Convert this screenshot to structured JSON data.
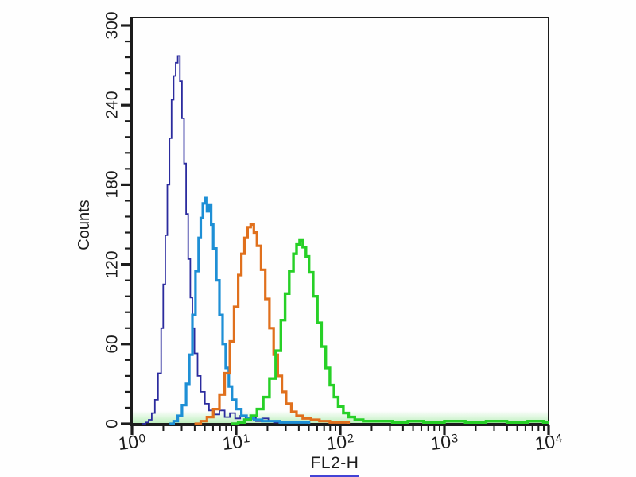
{
  "chart_data": {
    "type": "line",
    "subtype": "flow-cytometry-step-histogram",
    "title": "",
    "xlabel": "FL2-H",
    "ylabel": "Counts",
    "x_scale": "log10",
    "xlim_log_decades": [
      0,
      4
    ],
    "ylim": [
      0,
      300
    ],
    "grid": false,
    "legend": "none",
    "background_color": "#fefefe",
    "axis_color": "#1c1c1c",
    "xlabel_underline_color": "#4343d6",
    "x_ticks": [
      {
        "base": "10",
        "exp": "0",
        "log_value": 0
      },
      {
        "base": "10",
        "exp": "1",
        "log_value": 1
      },
      {
        "base": "10",
        "exp": "2",
        "log_value": 2
      },
      {
        "base": "10",
        "exp": "3",
        "log_value": 3
      },
      {
        "base": "10",
        "exp": "4",
        "log_value": 4
      }
    ],
    "y_ticks": [
      {
        "label": "300",
        "value": 300
      },
      {
        "label": "240",
        "value": 240
      },
      {
        "label": "180",
        "value": 180
      },
      {
        "label": "120",
        "value": 120
      },
      {
        "label": "60",
        "value": 60
      },
      {
        "label": "0",
        "value": 0
      }
    ],
    "y_minor_step": 12,
    "series": [
      {
        "name": "dark-blue-histogram",
        "color": "#2b2b9e",
        "line_width": 1.8,
        "peak_x_value": 2.7,
        "peak_count": 277,
        "points_logx_count": [
          [
            0.1,
            0
          ],
          [
            0.13,
            1
          ],
          [
            0.16,
            3
          ],
          [
            0.19,
            8
          ],
          [
            0.22,
            18
          ],
          [
            0.25,
            38
          ],
          [
            0.28,
            72
          ],
          [
            0.3,
            105
          ],
          [
            0.32,
            142
          ],
          [
            0.34,
            180
          ],
          [
            0.36,
            215
          ],
          [
            0.38,
            244
          ],
          [
            0.4,
            262
          ],
          [
            0.42,
            272
          ],
          [
            0.44,
            277
          ],
          [
            0.46,
            258
          ],
          [
            0.48,
            230
          ],
          [
            0.5,
            196
          ],
          [
            0.52,
            158
          ],
          [
            0.54,
            124
          ],
          [
            0.56,
            95
          ],
          [
            0.58,
            72
          ],
          [
            0.6,
            53
          ],
          [
            0.63,
            36
          ],
          [
            0.66,
            24
          ],
          [
            0.7,
            15
          ],
          [
            0.74,
            10
          ],
          [
            0.79,
            7
          ],
          [
            0.84,
            10
          ],
          [
            0.89,
            5
          ],
          [
            0.94,
            8
          ],
          [
            0.99,
            4
          ],
          [
            1.04,
            6
          ],
          [
            1.09,
            3
          ],
          [
            1.14,
            5
          ],
          [
            1.19,
            2
          ],
          [
            1.25,
            4
          ],
          [
            1.31,
            2
          ],
          [
            1.37,
            1
          ],
          [
            1.43,
            0
          ]
        ]
      },
      {
        "name": "light-blue-histogram",
        "color": "#1e8fd5",
        "line_width": 3.2,
        "peak_x_value": 5,
        "peak_count": 170,
        "points_logx_count": [
          [
            0.36,
            0
          ],
          [
            0.4,
            2
          ],
          [
            0.44,
            6
          ],
          [
            0.48,
            14
          ],
          [
            0.52,
            30
          ],
          [
            0.55,
            52
          ],
          [
            0.58,
            82
          ],
          [
            0.61,
            115
          ],
          [
            0.64,
            140
          ],
          [
            0.66,
            155
          ],
          [
            0.68,
            166
          ],
          [
            0.7,
            170
          ],
          [
            0.72,
            160
          ],
          [
            0.74,
            165
          ],
          [
            0.76,
            150
          ],
          [
            0.78,
            132
          ],
          [
            0.81,
            108
          ],
          [
            0.84,
            82
          ],
          [
            0.87,
            60
          ],
          [
            0.9,
            42
          ],
          [
            0.93,
            28
          ],
          [
            0.96,
            18
          ],
          [
            1.0,
            11
          ],
          [
            1.05,
            6
          ],
          [
            1.1,
            4
          ],
          [
            1.17,
            3
          ],
          [
            1.25,
            2
          ],
          [
            1.33,
            2
          ],
          [
            1.42,
            1
          ],
          [
            1.52,
            1
          ],
          [
            1.62,
            1
          ],
          [
            1.7,
            0
          ]
        ]
      },
      {
        "name": "orange-histogram",
        "color": "#e0701d",
        "line_width": 3.2,
        "peak_x_value": 13,
        "peak_count": 150,
        "points_logx_count": [
          [
            0.6,
            0
          ],
          [
            0.66,
            2
          ],
          [
            0.72,
            5
          ],
          [
            0.78,
            11
          ],
          [
            0.84,
            22
          ],
          [
            0.89,
            38
          ],
          [
            0.94,
            62
          ],
          [
            0.98,
            88
          ],
          [
            1.02,
            112
          ],
          [
            1.05,
            128
          ],
          [
            1.08,
            140
          ],
          [
            1.11,
            148
          ],
          [
            1.14,
            150
          ],
          [
            1.17,
            144
          ],
          [
            1.2,
            134
          ],
          [
            1.24,
            116
          ],
          [
            1.28,
            94
          ],
          [
            1.32,
            72
          ],
          [
            1.36,
            52
          ],
          [
            1.4,
            36
          ],
          [
            1.44,
            24
          ],
          [
            1.48,
            15
          ],
          [
            1.53,
            9
          ],
          [
            1.58,
            6
          ],
          [
            1.64,
            4
          ],
          [
            1.72,
            3
          ],
          [
            1.8,
            2
          ],
          [
            1.9,
            1
          ],
          [
            2.0,
            1
          ],
          [
            2.08,
            0
          ]
        ]
      },
      {
        "name": "green-histogram",
        "color": "#27d027",
        "line_width": 3.4,
        "peak_x_value": 39,
        "peak_count": 138,
        "points_logx_count": [
          [
            0.95,
            0
          ],
          [
            1.02,
            1
          ],
          [
            1.08,
            3
          ],
          [
            1.14,
            6
          ],
          [
            1.2,
            11
          ],
          [
            1.26,
            20
          ],
          [
            1.32,
            34
          ],
          [
            1.38,
            55
          ],
          [
            1.43,
            78
          ],
          [
            1.47,
            98
          ],
          [
            1.51,
            115
          ],
          [
            1.55,
            128
          ],
          [
            1.58,
            135
          ],
          [
            1.61,
            138
          ],
          [
            1.64,
            133
          ],
          [
            1.67,
            126
          ],
          [
            1.7,
            114
          ],
          [
            1.74,
            96
          ],
          [
            1.78,
            76
          ],
          [
            1.82,
            58
          ],
          [
            1.86,
            42
          ],
          [
            1.9,
            29
          ],
          [
            1.94,
            20
          ],
          [
            1.98,
            13
          ],
          [
            2.03,
            8
          ],
          [
            2.08,
            5
          ],
          [
            2.14,
            3
          ],
          [
            2.22,
            2
          ],
          [
            2.35,
            2
          ],
          [
            2.5,
            1
          ],
          [
            2.65,
            2
          ],
          [
            2.8,
            1
          ],
          [
            3.0,
            2
          ],
          [
            3.2,
            1
          ],
          [
            3.4,
            2
          ],
          [
            3.6,
            1
          ],
          [
            3.8,
            2
          ],
          [
            3.95,
            1
          ],
          [
            4.0,
            1
          ]
        ]
      }
    ]
  }
}
